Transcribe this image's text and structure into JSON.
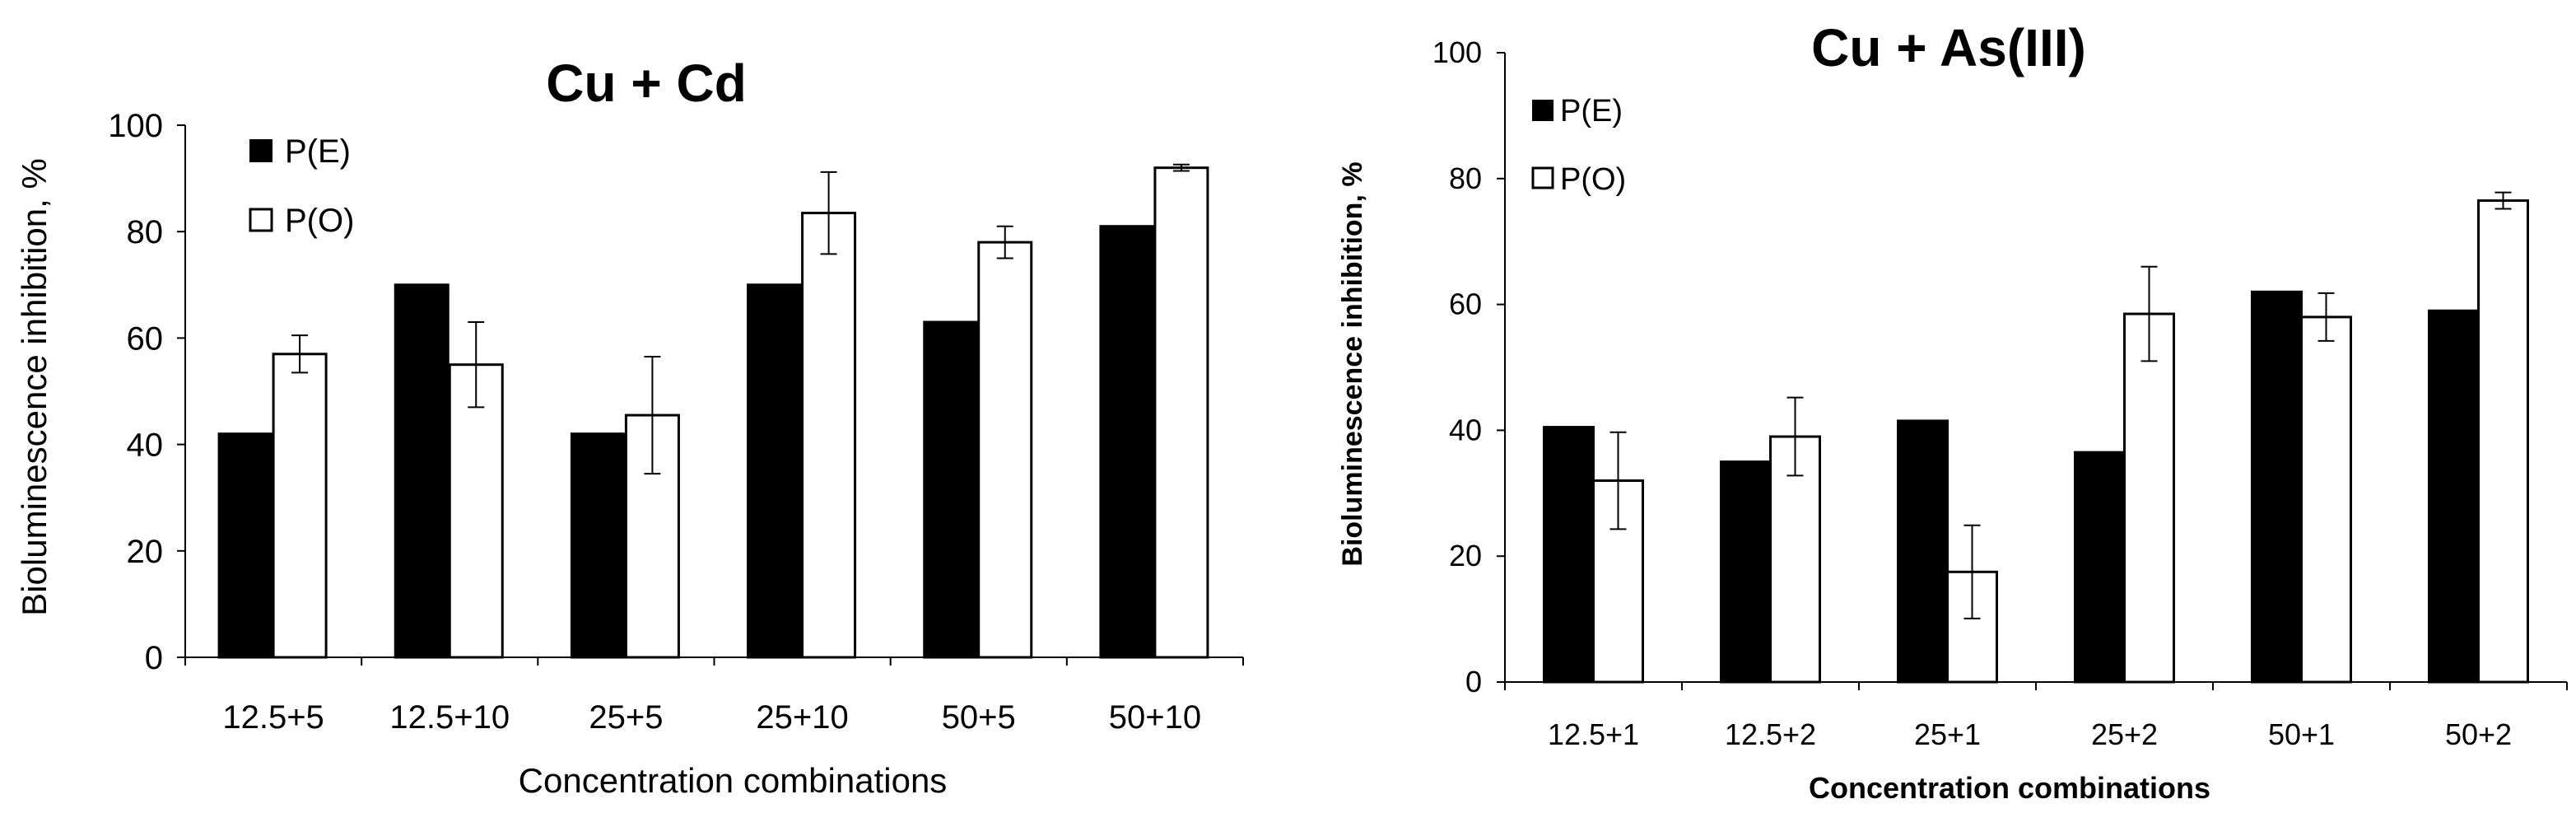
{
  "chart_data": [
    {
      "type": "bar",
      "title": "Cu + Cd",
      "xlabel": "Concentration combinations",
      "ylabel": "Bioluminescence inhibition, %",
      "ylim": [
        0,
        100
      ],
      "yticks": [
        "0",
        "20",
        "40",
        "60",
        "80",
        "100"
      ],
      "categories": [
        "12.5+5",
        "12.5+10",
        "25+5",
        "25+10",
        "50+5",
        "50+10"
      ],
      "series": [
        {
          "name": "P(E)",
          "color": "#000000",
          "values": [
            42,
            70,
            42,
            70,
            63,
            81
          ]
        },
        {
          "name": "P(O)",
          "color": "#ffffff",
          "values": [
            57,
            55,
            45.5,
            83.5,
            78,
            92
          ],
          "errors": [
            3.5,
            8,
            11,
            7.7,
            3,
            0.6
          ]
        }
      ],
      "legend": "top-left"
    },
    {
      "type": "bar",
      "title": "Cu + As(III)",
      "xlabel": "Concentration combinations",
      "ylabel": "Bioluminescence inhibition, %",
      "ylim": [
        0,
        100
      ],
      "yticks": [
        "0",
        "20",
        "40",
        "60",
        "80",
        "100"
      ],
      "categories": [
        "12.5+1",
        "12.5+2",
        "25+1",
        "25+2",
        "50+1",
        "50+2"
      ],
      "series": [
        {
          "name": "P(E)",
          "color": "#000000",
          "values": [
            40.5,
            35,
            41.5,
            36.5,
            62,
            59
          ]
        },
        {
          "name": "P(O)",
          "color": "#ffffff",
          "values": [
            32,
            39,
            17.5,
            58.5,
            58,
            76.5
          ],
          "errors": [
            7.7,
            6.2,
            7.4,
            7.5,
            3.8,
            1.3
          ]
        }
      ],
      "legend": "top-left"
    }
  ]
}
